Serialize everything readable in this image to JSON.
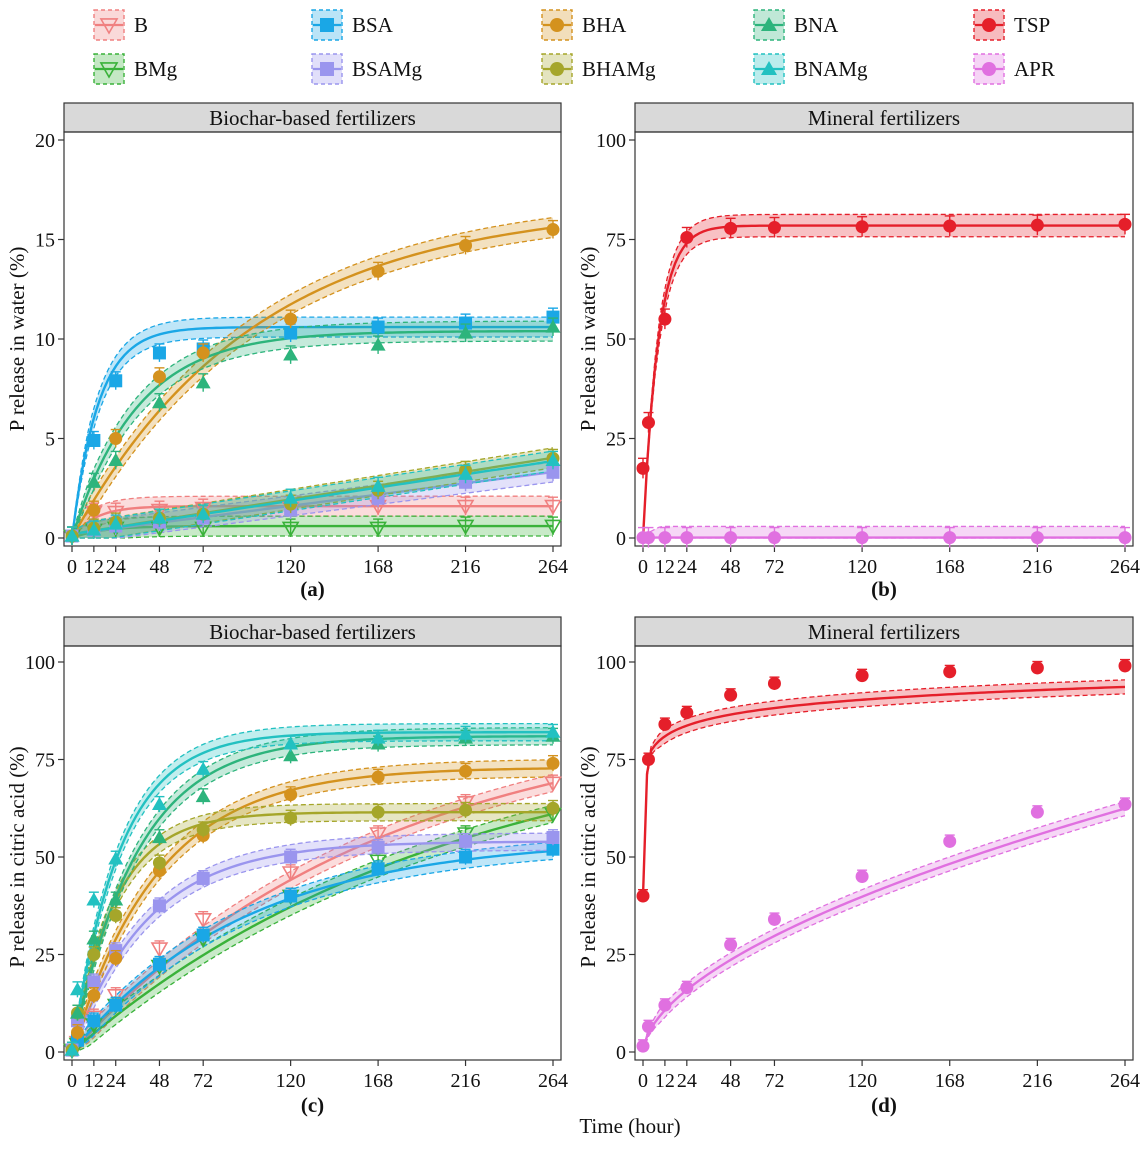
{
  "legend": [
    {
      "key": "B",
      "label": "B",
      "color": "#F08080",
      "marker": "tri-down-open"
    },
    {
      "key": "BSA",
      "label": "BSA",
      "color": "#1AA7E6",
      "marker": "square"
    },
    {
      "key": "BHA",
      "label": "BHA",
      "color": "#D4921E",
      "marker": "circle"
    },
    {
      "key": "BNA",
      "label": "BNA",
      "color": "#2DB47C",
      "marker": "triangle"
    },
    {
      "key": "TSP",
      "label": "TSP",
      "color": "#E51F2A",
      "marker": "circle"
    },
    {
      "key": "BMg",
      "label": "BMg",
      "color": "#3AB23A",
      "marker": "tri-down-open"
    },
    {
      "key": "BSAMg",
      "label": "BSAMg",
      "color": "#9A95EE",
      "marker": "square"
    },
    {
      "key": "BHAMg",
      "label": "BHAMg",
      "color": "#A5A62A",
      "marker": "circle"
    },
    {
      "key": "BNAMg",
      "label": "BNAMg",
      "color": "#22C1C1",
      "marker": "triangle"
    },
    {
      "key": "APR",
      "label": "APR",
      "color": "#E070E0",
      "marker": "circle"
    }
  ],
  "x_axis_title": "Time (hour)",
  "chart_data": [
    {
      "id": "a",
      "type": "line",
      "panel_label": "(a)",
      "strip_title": "Biochar-based fertilizers",
      "ylabel": "P release in water (%)",
      "xlim": [
        0,
        264
      ],
      "ylim": [
        0,
        20
      ],
      "xticks": [
        0,
        12,
        24,
        48,
        72,
        120,
        168,
        216,
        264
      ],
      "yticks": [
        0,
        5,
        10,
        15,
        20
      ],
      "band_width": 0.5,
      "series": [
        {
          "name": "B",
          "x": [
            0,
            12,
            24,
            48,
            72,
            120,
            168,
            216,
            264
          ],
          "values": [
            0.1,
            1.3,
            1.3,
            1.4,
            1.5,
            1.5,
            1.6,
            1.6,
            1.6
          ],
          "fit": {
            "model": "first_order",
            "a": 1.6,
            "k": 0.08
          }
        },
        {
          "name": "BMg",
          "x": [
            0,
            12,
            24,
            48,
            72,
            120,
            168,
            216,
            264
          ],
          "values": [
            0.1,
            0.4,
            0.5,
            0.5,
            0.5,
            0.5,
            0.5,
            0.6,
            0.6
          ],
          "fit": {
            "model": "first_order",
            "a": 0.6,
            "k": 0.06
          }
        },
        {
          "name": "BSA",
          "x": [
            0,
            12,
            24,
            48,
            72,
            120,
            168,
            216,
            264
          ],
          "values": [
            0.1,
            4.9,
            7.9,
            9.3,
            9.5,
            10.3,
            10.6,
            10.8,
            11.1
          ],
          "fit": {
            "model": "first_order",
            "a": 10.6,
            "k": 0.07
          }
        },
        {
          "name": "BSAMg",
          "x": [
            0,
            12,
            24,
            48,
            72,
            120,
            168,
            216,
            264
          ],
          "values": [
            0.1,
            0.4,
            0.6,
            0.8,
            1.0,
            1.4,
            2.0,
            2.8,
            3.3
          ],
          "fit": {
            "model": "linear",
            "a": 0.2,
            "b": 0.0118
          }
        },
        {
          "name": "BHA",
          "x": [
            0,
            12,
            24,
            48,
            72,
            120,
            168,
            216,
            264
          ],
          "values": [
            0.1,
            1.4,
            5.0,
            8.1,
            9.3,
            11.0,
            13.4,
            14.7,
            15.5
          ],
          "fit": {
            "model": "first_order",
            "a": 16.8,
            "k": 0.01
          }
        },
        {
          "name": "BHAMg",
          "x": [
            0,
            12,
            24,
            48,
            72,
            120,
            168,
            216,
            264
          ],
          "values": [
            0.1,
            0.5,
            0.8,
            1.0,
            1.2,
            1.7,
            2.4,
            3.4,
            4.0
          ],
          "fit": {
            "model": "linear",
            "a": 0.2,
            "b": 0.0145
          }
        },
        {
          "name": "BNA",
          "x": [
            0,
            12,
            24,
            48,
            72,
            120,
            168,
            216,
            264
          ],
          "values": [
            0.1,
            2.8,
            3.9,
            6.8,
            7.8,
            9.2,
            9.7,
            10.3,
            10.6
          ],
          "fit": {
            "model": "first_order",
            "a": 10.4,
            "k": 0.028
          }
        },
        {
          "name": "BNAMg",
          "x": [
            0,
            12,
            24,
            48,
            72,
            120,
            168,
            216,
            264
          ],
          "values": [
            0.1,
            0.4,
            0.7,
            1.0,
            1.2,
            2.0,
            2.6,
            3.2,
            3.9
          ],
          "fit": {
            "model": "linear",
            "a": 0.2,
            "b": 0.0139
          }
        }
      ]
    },
    {
      "id": "b",
      "type": "line",
      "panel_label": "(b)",
      "strip_title": "Mineral fertilizers",
      "ylabel": "P release in water (%)",
      "xlim": [
        0,
        264
      ],
      "ylim": [
        0,
        100
      ],
      "xticks": [
        0,
        12,
        24,
        48,
        72,
        120,
        168,
        216,
        264
      ],
      "yticks": [
        0,
        25,
        50,
        75,
        100
      ],
      "band_width": 2.8,
      "series": [
        {
          "name": "TSP",
          "x": [
            0,
            3,
            12,
            24,
            48,
            72,
            120,
            168,
            216,
            264
          ],
          "values": [
            17.5,
            29.0,
            55.0,
            75.5,
            77.8,
            78.0,
            78.2,
            78.4,
            78.6,
            78.8
          ],
          "fit": {
            "model": "first_order",
            "a": 78.5,
            "k": 0.12
          }
        },
        {
          "name": "APR",
          "x": [
            0,
            3,
            12,
            24,
            48,
            72,
            120,
            168,
            216,
            264
          ],
          "values": [
            0.1,
            0.1,
            0.1,
            0.1,
            0.1,
            0.1,
            0.1,
            0.1,
            0.1,
            0.1
          ],
          "fit": {
            "model": "linear",
            "a": 0.1,
            "b": 0
          }
        }
      ]
    },
    {
      "id": "c",
      "type": "line",
      "panel_label": "(c)",
      "strip_title": "Biochar-based fertilizers",
      "ylabel": "P release in citric acid (%)",
      "xlim": [
        0,
        264
      ],
      "ylim": [
        0,
        100
      ],
      "xticks": [
        0,
        12,
        24,
        48,
        72,
        120,
        168,
        216,
        264
      ],
      "yticks": [
        0,
        25,
        50,
        75,
        100
      ],
      "band_width": 2.2,
      "series": [
        {
          "name": "B",
          "x": [
            0,
            3,
            12,
            24,
            48,
            72,
            120,
            168,
            216,
            264
          ],
          "values": [
            0.5,
            2.5,
            9.0,
            14.5,
            26.5,
            34.0,
            46.0,
            56.0,
            64.0,
            69.0
          ],
          "fit": {
            "model": "first_order",
            "a": 88,
            "k": 0.0058
          }
        },
        {
          "name": "BMg",
          "x": [
            0,
            3,
            12,
            24,
            48,
            72,
            120,
            168,
            216,
            264
          ],
          "values": [
            0.5,
            2.0,
            7.0,
            12.0,
            22.0,
            29.0,
            40.0,
            49.0,
            56.0,
            61.0
          ],
          "fit": {
            "model": "first_order",
            "a": 85,
            "k": 0.0048
          }
        },
        {
          "name": "BSA",
          "x": [
            0,
            3,
            12,
            24,
            48,
            72,
            120,
            168,
            216,
            264
          ],
          "values": [
            0.5,
            3.0,
            8.0,
            12.0,
            22.5,
            30.0,
            40.0,
            47.0,
            50.0,
            52.0
          ],
          "fit": {
            "model": "first_order",
            "a": 55,
            "k": 0.0105
          }
        },
        {
          "name": "BSAMg",
          "x": [
            0,
            3,
            12,
            24,
            48,
            72,
            120,
            168,
            216,
            264
          ],
          "values": [
            0.5,
            8.0,
            18.0,
            26.0,
            37.5,
            44.5,
            50.0,
            52.5,
            54.0,
            55.0
          ],
          "fit": {
            "model": "first_order",
            "a": 54,
            "k": 0.024
          }
        },
        {
          "name": "BHA",
          "x": [
            0,
            3,
            12,
            24,
            48,
            72,
            120,
            168,
            216,
            264
          ],
          "values": [
            0.5,
            5.0,
            14.5,
            24.0,
            46.5,
            55.5,
            66.0,
            70.5,
            72.0,
            74.0
          ],
          "fit": {
            "model": "first_order",
            "a": 73,
            "k": 0.021
          }
        },
        {
          "name": "BHAMg",
          "x": [
            0,
            3,
            12,
            24,
            48,
            72,
            120,
            168,
            216,
            264
          ],
          "values": [
            0.5,
            10.0,
            25.0,
            35.0,
            48.5,
            57.0,
            60.0,
            61.5,
            62.0,
            62.5
          ],
          "fit": {
            "model": "first_order",
            "a": 61.5,
            "k": 0.042
          }
        },
        {
          "name": "BNA",
          "x": [
            0,
            3,
            12,
            24,
            48,
            72,
            120,
            168,
            216,
            264
          ],
          "values": [
            0.5,
            10.0,
            29.0,
            39.0,
            55.0,
            65.5,
            76.0,
            79.0,
            80.5,
            81.0
          ],
          "fit": {
            "model": "first_order",
            "a": 81,
            "k": 0.028
          }
        },
        {
          "name": "BNAMg",
          "x": [
            0,
            3,
            12,
            24,
            48,
            72,
            120,
            168,
            216,
            264
          ],
          "values": [
            0.5,
            16.0,
            39.0,
            49.5,
            63.5,
            72.5,
            79.0,
            80.5,
            81.5,
            82.0
          ],
          "fit": {
            "model": "first_order",
            "a": 82,
            "k": 0.038
          }
        }
      ]
    },
    {
      "id": "d",
      "type": "line",
      "panel_label": "(d)",
      "strip_title": "Mineral fertilizers",
      "ylabel": "P release in citric acid (%)",
      "xlim": [
        0,
        264
      ],
      "ylim": [
        0,
        100
      ],
      "xticks": [
        0,
        12,
        24,
        48,
        72,
        120,
        168,
        216,
        264
      ],
      "yticks": [
        0,
        25,
        50,
        75,
        100
      ],
      "band_width": 1.8,
      "series": [
        {
          "name": "TSP",
          "x": [
            0,
            3,
            12,
            24,
            48,
            72,
            120,
            168,
            216,
            264
          ],
          "values": [
            40.0,
            75.0,
            84.0,
            87.0,
            91.5,
            94.5,
            96.5,
            97.5,
            98.5,
            99.0
          ],
          "fit": {
            "model": "log",
            "a": 76,
            "b": 4.2,
            "x0": 1.0,
            "start": 40
          }
        },
        {
          "name": "APR",
          "x": [
            0,
            3,
            12,
            24,
            48,
            72,
            120,
            168,
            216,
            264
          ],
          "values": [
            1.5,
            6.5,
            12.0,
            16.5,
            27.5,
            34.0,
            45.0,
            54.0,
            61.5,
            63.5
          ],
          "fit": {
            "model": "power",
            "a": 2.6,
            "b": 0.57
          }
        }
      ]
    }
  ]
}
